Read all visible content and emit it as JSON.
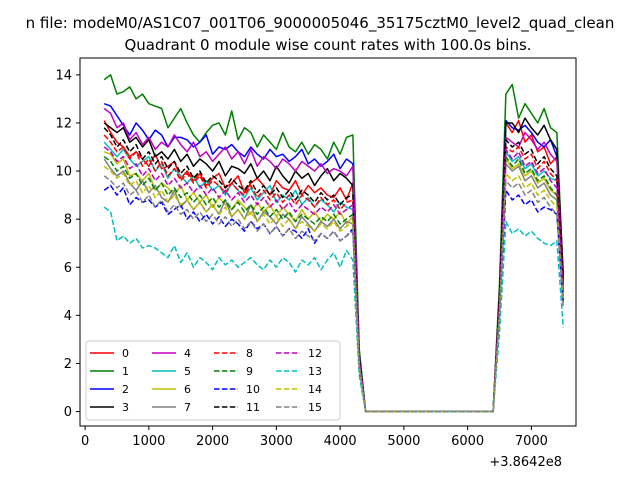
{
  "chart_data": {
    "type": "line",
    "suptitle": "n file: modeM0/AS1C07_001T06_9000005046_35175cztM0_level2_quad_clean",
    "title": "Quadrant 0 module wise count rates with 100.0s bins.",
    "x_offset_label": "+3.8642e8",
    "xlim": [
      -80,
      7700
    ],
    "ylim": [
      -0.6,
      14.7
    ],
    "xticks": [
      0,
      1000,
      2000,
      3000,
      4000,
      5000,
      6000,
      7000
    ],
    "yticks": [
      0,
      2,
      4,
      6,
      8,
      10,
      12,
      14
    ],
    "grid": false,
    "legend_position": "lower-left",
    "legend_columns": 4,
    "x": [
      300,
      400,
      500,
      600,
      700,
      800,
      900,
      1000,
      1100,
      1200,
      1300,
      1400,
      1500,
      1600,
      1700,
      1800,
      1900,
      2000,
      2100,
      2200,
      2300,
      2400,
      2500,
      2600,
      2700,
      2800,
      2900,
      3000,
      3100,
      3200,
      3300,
      3400,
      3500,
      3600,
      3700,
      3800,
      3900,
      4000,
      4100,
      4200,
      4300,
      4400,
      4500,
      6400,
      6500,
      6600,
      6700,
      6800,
      6900,
      7000,
      7100,
      7200,
      7300,
      7400,
      7500
    ],
    "series": [
      {
        "name": "0",
        "color": "#ff0000",
        "dash": false,
        "values": [
          12.1,
          11.6,
          11.2,
          11.0,
          10.6,
          10.8,
          10.5,
          10.2,
          10.7,
          10.1,
          10.2,
          10.4,
          9.7,
          10.0,
          9.6,
          9.9,
          9.4,
          9.7,
          9.9,
          9.3,
          9.5,
          9.8,
          9.1,
          9.5,
          9.7,
          9.4,
          9.0,
          9.6,
          9.3,
          9.2,
          9.6,
          9.0,
          9.4,
          9.1,
          9.3,
          9.0,
          8.9,
          9.3,
          8.8,
          9.5,
          2.3,
          0,
          0,
          0,
          4.5,
          12.0,
          11.6,
          12.1,
          11.2,
          11.5,
          10.8,
          11.0,
          10.3,
          10.6,
          5.5
        ]
      },
      {
        "name": "1",
        "color": "#008000",
        "dash": false,
        "values": [
          13.8,
          14.0,
          13.2,
          13.3,
          13.5,
          13.0,
          13.2,
          12.8,
          12.7,
          12.6,
          11.8,
          12.2,
          12.6,
          12.0,
          11.5,
          11.2,
          11.6,
          11.9,
          12.0,
          11.5,
          12.5,
          11.3,
          11.8,
          11.6,
          11.0,
          11.5,
          11.2,
          10.9,
          11.6,
          11.0,
          10.8,
          11.2,
          10.7,
          11.1,
          10.9,
          10.5,
          11.2,
          10.7,
          11.4,
          11.5,
          2.6,
          0,
          0,
          0,
          5.3,
          13.2,
          13.6,
          12.2,
          12.8,
          12.4,
          12.0,
          12.6,
          11.8,
          11.6,
          5.6
        ]
      },
      {
        "name": "2",
        "color": "#0000ff",
        "dash": false,
        "values": [
          12.8,
          12.7,
          12.3,
          11.9,
          11.5,
          12.0,
          11.7,
          11.3,
          11.7,
          11.5,
          11.0,
          11.4,
          11.4,
          11.3,
          11.0,
          11.2,
          11.5,
          10.7,
          11.0,
          10.9,
          11.1,
          10.8,
          10.6,
          11.0,
          10.7,
          10.5,
          10.9,
          10.6,
          10.7,
          10.4,
          10.6,
          10.9,
          10.3,
          10.5,
          10.2,
          10.4,
          10.7,
          10.1,
          10.5,
          10.3,
          2.4,
          0,
          0,
          0,
          4.8,
          12.1,
          11.8,
          11.7,
          11.9,
          11.6,
          11.2,
          11.0,
          11.3,
          10.6,
          5.6
        ]
      },
      {
        "name": "3",
        "color": "#000000",
        "dash": false,
        "values": [
          12.0,
          11.8,
          11.6,
          11.8,
          11.2,
          11.4,
          11.0,
          11.3,
          10.6,
          10.8,
          10.5,
          10.9,
          10.4,
          10.7,
          10.2,
          10.5,
          10.3,
          10.0,
          10.4,
          9.8,
          10.2,
          10.1,
          9.9,
          10.3,
          9.7,
          10.0,
          9.6,
          10.2,
          9.8,
          9.5,
          10.0,
          9.7,
          9.9,
          9.4,
          9.8,
          10.1,
          9.6,
          9.9,
          9.7,
          9.4,
          2.3,
          0,
          0,
          0,
          4.9,
          12.0,
          12.0,
          11.6,
          12.2,
          11.8,
          11.5,
          11.9,
          11.3,
          10.9,
          5.7
        ]
      },
      {
        "name": "4",
        "color": "#bf00bf",
        "dash": false,
        "values": [
          12.6,
          12.4,
          11.8,
          12.0,
          11.3,
          11.6,
          11.1,
          11.4,
          10.9,
          11.2,
          11.0,
          11.5,
          11.1,
          10.8,
          11.2,
          10.6,
          10.8,
          10.4,
          10.7,
          11.0,
          10.5,
          10.8,
          10.3,
          10.9,
          10.2,
          10.6,
          10.4,
          10.1,
          10.5,
          10.3,
          10.0,
          10.4,
          10.2,
          10.0,
          10.3,
          9.9,
          10.1,
          10.0,
          9.8,
          10.2,
          2.3,
          0,
          0,
          0,
          4.7,
          11.4,
          11.2,
          11.0,
          11.6,
          11.3,
          10.9,
          11.2,
          10.7,
          10.4,
          5.3
        ]
      },
      {
        "name": "5",
        "color": "#00bfbf",
        "dash": false,
        "values": [
          11.2,
          10.9,
          10.6,
          10.9,
          10.5,
          10.2,
          10.4,
          10.6,
          10.0,
          10.3,
          9.7,
          10.1,
          9.8,
          9.5,
          9.8,
          9.3,
          9.6,
          9.2,
          9.4,
          9.0,
          9.5,
          9.2,
          8.9,
          9.3,
          8.8,
          9.1,
          9.4,
          8.7,
          9.0,
          8.8,
          9.2,
          8.6,
          8.9,
          8.5,
          8.8,
          8.6,
          8.3,
          8.7,
          8.5,
          8.4,
          2.1,
          0,
          0,
          0,
          4.3,
          10.8,
          10.4,
          10.6,
          10.1,
          10.3,
          9.8,
          10.0,
          9.7,
          9.6,
          4.8
        ]
      },
      {
        "name": "6",
        "color": "#bfbf00",
        "dash": false,
        "values": [
          10.8,
          10.7,
          10.3,
          10.5,
          9.8,
          9.9,
          9.6,
          9.9,
          9.2,
          9.5,
          9.3,
          9.0,
          9.4,
          8.8,
          9.1,
          8.7,
          9.0,
          8.5,
          8.9,
          8.6,
          8.4,
          8.8,
          8.5,
          8.2,
          8.7,
          8.3,
          8.6,
          8.1,
          8.5,
          8.2,
          7.9,
          8.4,
          8.0,
          8.3,
          7.9,
          8.2,
          8.0,
          8.3,
          7.8,
          8.1,
          2.0,
          0,
          0,
          0,
          4.2,
          10.5,
          10.1,
          10.3,
          9.8,
          10.0,
          9.5,
          9.7,
          9.2,
          9.0,
          4.7
        ]
      },
      {
        "name": "7",
        "color": "#808080",
        "dash": false,
        "values": [
          10.5,
          10.1,
          9.8,
          10.0,
          9.5,
          9.2,
          9.6,
          9.1,
          9.4,
          8.9,
          8.7,
          9.2,
          8.5,
          8.8,
          8.4,
          8.7,
          8.3,
          8.6,
          8.2,
          8.8,
          8.1,
          8.4,
          8.0,
          8.6,
          7.9,
          8.3,
          8.1,
          7.8,
          8.2,
          8.0,
          7.6,
          8.1,
          7.8,
          7.5,
          7.9,
          7.7,
          8.0,
          7.6,
          7.9,
          7.8,
          1.9,
          0,
          0,
          0,
          4.1,
          10.3,
          10.0,
          10.2,
          9.6,
          9.8,
          9.3,
          9.5,
          9.0,
          8.8,
          4.6
        ]
      },
      {
        "name": "8",
        "color": "#ff0000",
        "dash": true,
        "values": [
          11.5,
          11.2,
          10.8,
          11.0,
          10.5,
          10.8,
          10.2,
          10.5,
          10.0,
          10.4,
          9.8,
          10.1,
          9.6,
          9.9,
          9.5,
          9.8,
          9.3,
          9.6,
          9.4,
          9.1,
          9.5,
          9.2,
          9.0,
          9.4,
          8.9,
          9.2,
          8.8,
          9.1,
          8.7,
          9.0,
          8.6,
          9.0,
          8.8,
          8.5,
          8.9,
          8.6,
          8.8,
          8.4,
          8.7,
          8.8,
          2.2,
          0,
          0,
          0,
          4.6,
          11.0,
          10.8,
          11.0,
          10.5,
          10.7,
          10.1,
          10.4,
          9.9,
          9.6,
          5.2
        ]
      },
      {
        "name": "9",
        "color": "#008000",
        "dash": true,
        "values": [
          10.6,
          10.4,
          10.0,
          10.2,
          9.7,
          9.9,
          9.4,
          9.7,
          9.2,
          9.5,
          9.0,
          9.3,
          8.9,
          9.1,
          8.7,
          9.0,
          8.6,
          8.9,
          8.5,
          8.8,
          8.4,
          8.7,
          8.3,
          8.6,
          8.2,
          8.5,
          8.1,
          8.4,
          8.0,
          8.3,
          7.9,
          8.2,
          8.0,
          7.8,
          8.1,
          7.9,
          8.2,
          7.8,
          8.0,
          8.2,
          2.0,
          0,
          0,
          0,
          4.3,
          10.6,
          10.2,
          10.5,
          9.9,
          10.1,
          9.6,
          9.8,
          9.3,
          9.0,
          4.8
        ]
      },
      {
        "name": "10",
        "color": "#0000ff",
        "dash": true,
        "values": [
          9.2,
          9.4,
          9.0,
          9.3,
          8.6,
          8.9,
          8.7,
          8.8,
          8.5,
          8.7,
          8.2,
          8.4,
          8.6,
          8.0,
          8.3,
          7.9,
          8.2,
          7.8,
          8.1,
          7.7,
          8.0,
          7.8,
          7.5,
          7.9,
          7.6,
          7.8,
          7.4,
          7.7,
          7.3,
          7.6,
          7.5,
          7.2,
          7.6,
          7.0,
          7.4,
          7.2,
          7.5,
          7.1,
          7.3,
          7.6,
          1.8,
          0,
          0,
          0,
          3.9,
          9.2,
          8.8,
          9.0,
          8.6,
          8.8,
          8.3,
          8.5,
          8.4,
          8.2,
          4.5
        ]
      },
      {
        "name": "11",
        "color": "#000000",
        "dash": true,
        "values": [
          11.8,
          11.5,
          11.0,
          11.3,
          10.8,
          11.1,
          10.5,
          10.8,
          10.3,
          10.6,
          10.1,
          10.4,
          9.9,
          10.2,
          9.7,
          10.0,
          9.5,
          9.8,
          9.6,
          9.3,
          9.7,
          9.4,
          9.2,
          9.6,
          9.1,
          9.4,
          9.0,
          9.3,
          8.9,
          9.2,
          8.8,
          9.2,
          9.0,
          8.7,
          9.1,
          8.8,
          9.0,
          8.6,
          8.9,
          9.0,
          2.2,
          0,
          0,
          0,
          4.7,
          11.3,
          11.0,
          11.2,
          10.7,
          10.9,
          10.3,
          10.6,
          10.1,
          9.8,
          5.3
        ]
      },
      {
        "name": "12",
        "color": "#bf00bf",
        "dash": true,
        "values": [
          11.0,
          10.8,
          10.4,
          10.6,
          10.1,
          10.3,
          9.8,
          10.1,
          9.6,
          9.9,
          9.4,
          9.7,
          9.3,
          9.5,
          9.1,
          9.4,
          9.0,
          9.3,
          8.9,
          9.2,
          8.8,
          9.1,
          8.7,
          9.0,
          8.6,
          8.9,
          8.5,
          8.8,
          8.4,
          8.7,
          8.3,
          8.6,
          8.4,
          8.2,
          8.5,
          8.3,
          8.6,
          8.2,
          8.4,
          8.6,
          2.1,
          0,
          0,
          0,
          4.5,
          10.9,
          10.5,
          10.8,
          10.2,
          10.4,
          9.9,
          10.1,
          9.6,
          9.3,
          5.0
        ]
      },
      {
        "name": "13",
        "color": "#00bfbf",
        "dash": true,
        "values": [
          8.5,
          8.3,
          7.1,
          7.3,
          7.0,
          7.2,
          6.8,
          6.9,
          6.8,
          6.6,
          6.4,
          6.9,
          6.2,
          6.6,
          6.0,
          6.4,
          6.2,
          5.9,
          6.4,
          6.1,
          6.3,
          6.0,
          6.2,
          6.4,
          6.1,
          5.9,
          6.3,
          6.0,
          6.4,
          6.2,
          5.8,
          6.3,
          6.1,
          6.4,
          5.9,
          6.3,
          6.6,
          6.0,
          6.7,
          6.3,
          1.5,
          0,
          0,
          0,
          3.3,
          7.9,
          7.4,
          7.6,
          7.3,
          7.5,
          7.2,
          7.0,
          6.9,
          7.1,
          3.5
        ]
      },
      {
        "name": "14",
        "color": "#bfbf00",
        "dash": true,
        "values": [
          10.2,
          10.0,
          9.7,
          9.9,
          9.4,
          9.6,
          9.1,
          9.4,
          8.9,
          9.2,
          8.7,
          9.0,
          8.6,
          8.8,
          8.4,
          8.7,
          8.3,
          8.6,
          8.2,
          8.5,
          8.1,
          8.4,
          8.0,
          8.3,
          7.9,
          8.2,
          7.8,
          8.1,
          7.7,
          8.0,
          7.6,
          7.9,
          7.7,
          7.5,
          7.8,
          7.6,
          7.9,
          7.5,
          7.7,
          7.9,
          1.9,
          0,
          0,
          0,
          4.1,
          9.9,
          9.6,
          9.8,
          9.3,
          9.5,
          9.0,
          9.2,
          8.8,
          8.5,
          4.5
        ]
      },
      {
        "name": "15",
        "color": "#808080",
        "dash": true,
        "values": [
          9.8,
          9.6,
          9.3,
          9.5,
          9.0,
          9.2,
          8.7,
          9.0,
          8.5,
          8.8,
          8.3,
          8.6,
          8.2,
          8.4,
          8.0,
          8.3,
          7.9,
          8.2,
          7.8,
          8.1,
          7.7,
          8.0,
          7.6,
          7.9,
          7.5,
          7.8,
          7.4,
          7.7,
          7.3,
          7.6,
          7.2,
          7.5,
          7.3,
          7.1,
          7.4,
          7.2,
          7.5,
          7.1,
          7.3,
          7.5,
          1.8,
          0,
          0,
          0,
          4.0,
          9.6,
          9.3,
          9.5,
          9.0,
          9.2,
          8.7,
          8.9,
          8.5,
          8.2,
          4.3
        ]
      }
    ]
  }
}
